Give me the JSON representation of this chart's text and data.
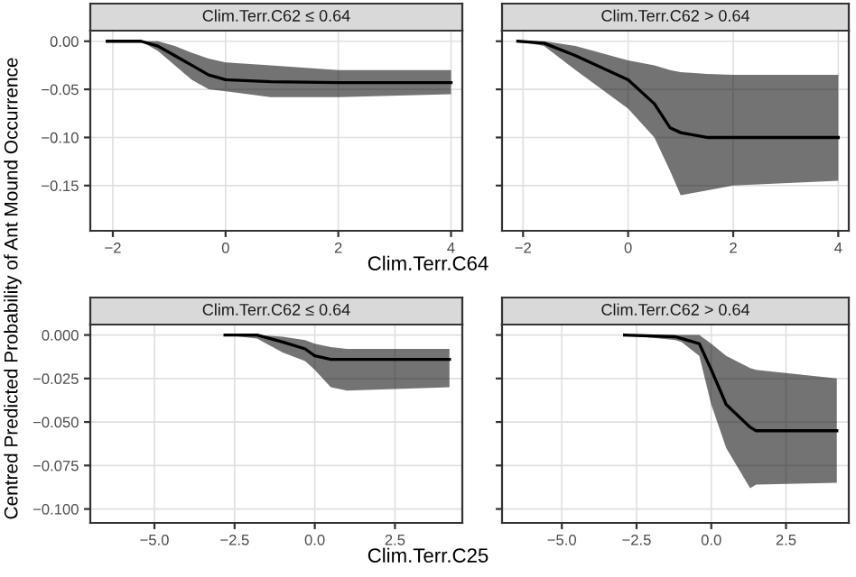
{
  "chart_data": [
    {
      "type": "line",
      "title": "Clim.Terr.C62 ≤ 0.64",
      "xlabel": "Clim.Terr.C64",
      "ylabel": "Centred Predicted Probability of Ant Mound Occurrence",
      "grid": true,
      "xlim": [
        -2.4,
        4.2
      ],
      "ylim": [
        -0.197,
        0.011
      ],
      "xticks": [
        {
          "value": -2,
          "label": "−2"
        },
        0,
        2,
        4
      ],
      "yticks": [
        {
          "value": 0,
          "label": "0.00"
        },
        {
          "value": -0.05,
          "label": "−0.05"
        },
        {
          "value": -0.1,
          "label": "−0.10"
        },
        {
          "value": -0.15,
          "label": "−0.15"
        }
      ],
      "series": [
        {
          "color": "#000000",
          "x": [
            -2.1,
            -1.5,
            -1.2,
            -0.9,
            -0.6,
            -0.3,
            0,
            0.8,
            2,
            4
          ],
          "values": [
            0,
            0,
            -0.005,
            -0.015,
            -0.025,
            -0.035,
            -0.04,
            -0.042,
            -0.043,
            -0.043
          ],
          "lower": [
            0,
            0,
            -0.01,
            -0.025,
            -0.04,
            -0.05,
            -0.052,
            -0.058,
            -0.058,
            -0.055
          ],
          "upper": [
            0,
            0,
            0,
            -0.005,
            -0.012,
            -0.018,
            -0.022,
            -0.025,
            -0.03,
            -0.03
          ]
        }
      ]
    },
    {
      "type": "line",
      "title": "Clim.Terr.C62 > 0.64",
      "grid": true,
      "tick_labels": "x",
      "xlim": [
        -2.4,
        4.2
      ],
      "ylim": [
        -0.197,
        0.011
      ],
      "xticks": [
        {
          "value": -2,
          "label": "−2"
        },
        0,
        2,
        4
      ],
      "yticks": [
        0,
        -0.05,
        -0.1,
        -0.15
      ],
      "series": [
        {
          "color": "#000000",
          "x": [
            -2.1,
            -1.6,
            -1,
            0,
            0.5,
            0.8,
            1,
            1.5,
            2,
            4
          ],
          "values": [
            0,
            -0.002,
            -0.015,
            -0.04,
            -0.065,
            -0.09,
            -0.095,
            -0.1,
            -0.1,
            -0.1
          ],
          "lower": [
            0,
            -0.005,
            -0.03,
            -0.07,
            -0.1,
            -0.135,
            -0.16,
            -0.155,
            -0.15,
            -0.145
          ],
          "upper": [
            0,
            0,
            -0.005,
            -0.02,
            -0.025,
            -0.03,
            -0.032,
            -0.034,
            -0.035,
            -0.035
          ]
        }
      ]
    },
    {
      "type": "line",
      "title": "Clim.Terr.C62 ≤ 0.64",
      "xlabel": "Clim.Terr.C25",
      "grid": true,
      "xlim": [
        -7.0,
        4.6
      ],
      "ylim": [
        -0.108,
        0.006
      ],
      "xticks": [
        {
          "value": -5,
          "label": "−5.0"
        },
        {
          "value": -2.5,
          "label": "−2.5"
        },
        {
          "value": 0,
          "label": "0.0"
        },
        2.5
      ],
      "yticks": [
        {
          "value": 0,
          "label": "0.000"
        },
        {
          "value": -0.025,
          "label": "−0.025"
        },
        {
          "value": -0.05,
          "label": "−0.050"
        },
        {
          "value": -0.075,
          "label": "−0.075"
        },
        {
          "value": -0.1,
          "label": "−0.100"
        }
      ],
      "series": [
        {
          "color": "#000000",
          "x": [
            -2.8,
            -1.8,
            -1,
            -0.3,
            0,
            0.5,
            1,
            4.2
          ],
          "values": [
            0,
            0,
            -0.004,
            -0.008,
            -0.012,
            -0.014,
            -0.014,
            -0.014
          ],
          "lower": [
            0,
            -0.002,
            -0.01,
            -0.015,
            -0.02,
            -0.03,
            -0.032,
            -0.03
          ],
          "upper": [
            0,
            0,
            -0.001,
            -0.003,
            -0.005,
            -0.007,
            -0.008,
            -0.008
          ]
        }
      ]
    },
    {
      "type": "line",
      "title": "Clim.Terr.C62 > 0.64",
      "grid": true,
      "tick_labels": "x",
      "xlim": [
        -7.0,
        4.6
      ],
      "ylim": [
        -0.108,
        0.006
      ],
      "xticks": [
        {
          "value": -5,
          "label": "−5.0"
        },
        {
          "value": -2.5,
          "label": "−2.5"
        },
        {
          "value": 0,
          "label": "0.0"
        },
        2.5
      ],
      "yticks": [
        0,
        -0.025,
        -0.05,
        -0.075,
        -0.1
      ],
      "series": [
        {
          "color": "#000000",
          "x": [
            -2.9,
            -1.2,
            -1,
            -0.4,
            0,
            0.5,
            1.3,
            1.5,
            4.2
          ],
          "values": [
            0,
            -0.001,
            -0.002,
            -0.005,
            -0.02,
            -0.04,
            -0.053,
            -0.055,
            -0.055
          ],
          "lower": [
            0,
            -0.003,
            -0.004,
            -0.012,
            -0.04,
            -0.065,
            -0.088,
            -0.086,
            -0.085
          ],
          "upper": [
            0,
            0,
            0,
            0,
            -0.005,
            -0.012,
            -0.019,
            -0.02,
            -0.025
          ]
        }
      ]
    }
  ]
}
